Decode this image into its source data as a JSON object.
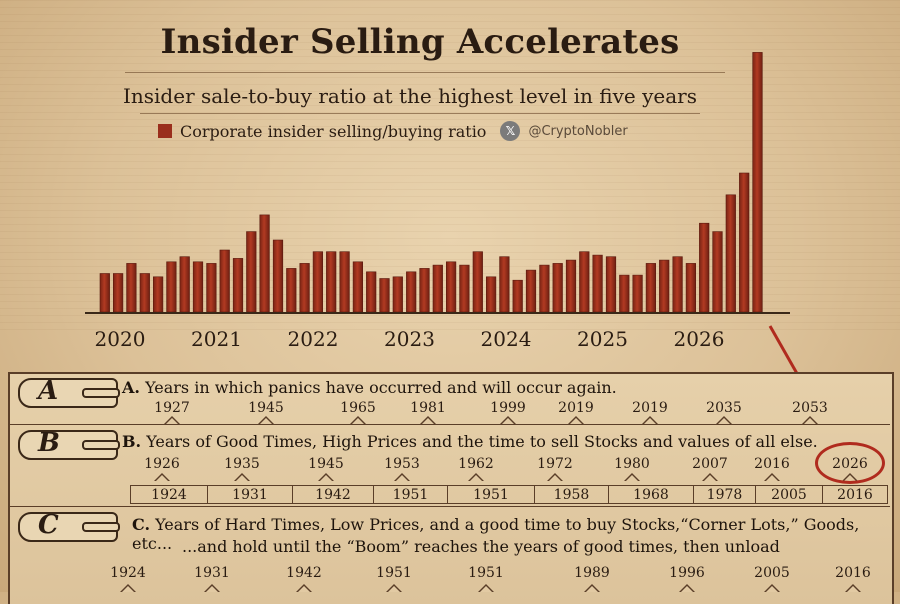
{
  "title": "Insider Selling Accelerates",
  "subtitle": "Insider sale-to-buy ratio at the highest level in five years",
  "legend": {
    "label": "Corporate insider selling/buying ratio",
    "handle_icon": "x-logo-icon",
    "handle": "@CryptoNobler"
  },
  "colors": {
    "bar": "#9a2e1c",
    "bar_dark": "#6e1f12",
    "accent_red": "#b02b1e",
    "ink": "#2a1c12"
  },
  "chart_data": {
    "type": "bar",
    "title": "Insider Selling Accelerates",
    "subtitle": "Insider sale-to-buy ratio at the highest level in five years",
    "x_tick_labels": [
      "2020",
      "2021",
      "2022",
      "2023",
      "2024",
      "2025",
      "2026"
    ],
    "series": [
      {
        "name": "Corporate insider selling/buying ratio",
        "values": [
          0.23,
          0.23,
          0.29,
          0.23,
          0.21,
          0.3,
          0.33,
          0.3,
          0.29,
          0.37,
          0.32,
          0.48,
          0.58,
          0.43,
          0.26,
          0.29,
          0.36,
          0.36,
          0.36,
          0.3,
          0.24,
          0.2,
          0.21,
          0.24,
          0.26,
          0.28,
          0.3,
          0.28,
          0.36,
          0.21,
          0.33,
          0.19,
          0.25,
          0.28,
          0.29,
          0.31,
          0.36,
          0.34,
          0.33,
          0.22,
          0.22,
          0.29,
          0.31,
          0.33,
          0.29,
          0.53,
          0.48,
          0.7,
          0.83,
          1.55
        ]
      }
    ],
    "ylim": [
      0,
      1.6
    ],
    "grid": false,
    "legend_position": "top-left"
  },
  "table": {
    "rows": [
      {
        "letter": "A",
        "label_prefix": "A.",
        "label": "Years in which panics have occurred and will occur again.",
        "years": [
          "1927",
          "1945",
          "1965",
          "1981",
          "1999",
          "2019",
          "2019",
          "2035",
          "2053"
        ]
      },
      {
        "letter": "B",
        "label_prefix": "B.",
        "label": "Years of Good Times, High Prices and the time to sell Stocks and values of all else.",
        "years": [
          "1926",
          "1935",
          "1945",
          "1953",
          "1962",
          "1972",
          "1980",
          "2007",
          "2016",
          "2026"
        ],
        "bottom_years": [
          "1924",
          "1931",
          "1942",
          "1951",
          "1951",
          "1958",
          "1968",
          "1978",
          "2005",
          "2016"
        ]
      },
      {
        "letter": "C",
        "label_prefix": "C.",
        "label": "Years of Hard Times, Low Prices, and a good time to buy Stocks,“Corner Lots,” Goods, etc...",
        "label2": "...and hold until the  “Boom” reaches the years of good times, then unload",
        "years": [
          "1924",
          "1931",
          "1942",
          "1951",
          "1951",
          "1989",
          "1996",
          "2005",
          "2016"
        ]
      }
    ]
  }
}
